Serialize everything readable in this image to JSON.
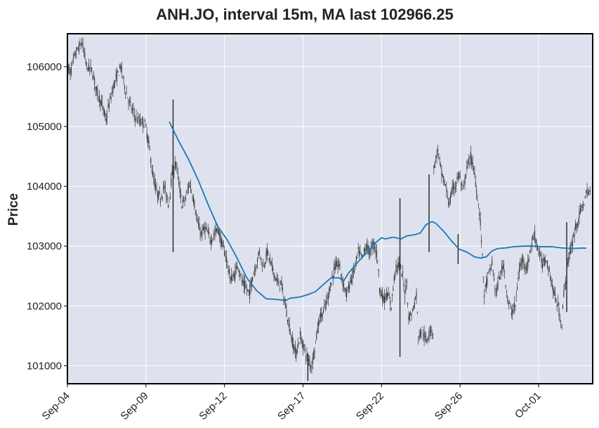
{
  "chart_data": {
    "type": "candlestick",
    "title": "ANH.JO, interval 15m, MA last 102966.25",
    "ylabel": "Price",
    "xlabel": "",
    "ylim": [
      100700,
      106550
    ],
    "yticks": [
      "101000",
      "102000",
      "103000",
      "104000",
      "105000",
      "106000"
    ],
    "xticks": [
      "Sep-04",
      "Sep-09",
      "Sep-12",
      "Sep-17",
      "Sep-22",
      "Sep-26",
      "Oct-01"
    ],
    "xtick_index": [
      0,
      81,
      162,
      243,
      324,
      405,
      486
    ],
    "n_bars": 540,
    "grid": true,
    "colors": {
      "background": "#dde2ee",
      "candle": "#333333",
      "ma": "#1f77b4",
      "grid": "#ffffff"
    },
    "price_points": [
      [
        0,
        106000
      ],
      [
        3,
        105900
      ],
      [
        8,
        106200
      ],
      [
        15,
        106400
      ],
      [
        20,
        106000
      ],
      [
        25,
        105950
      ],
      [
        30,
        105600
      ],
      [
        35,
        105400
      ],
      [
        40,
        105100
      ],
      [
        42,
        105300
      ],
      [
        48,
        105700
      ],
      [
        55,
        106000
      ],
      [
        60,
        105600
      ],
      [
        66,
        105300
      ],
      [
        72,
        105100
      ],
      [
        80,
        105050
      ],
      [
        84,
        104700
      ],
      [
        88,
        104200
      ],
      [
        92,
        103900
      ],
      [
        96,
        103800
      ],
      [
        100,
        104000
      ],
      [
        104,
        103700
      ],
      [
        108,
        104200
      ],
      [
        112,
        104400
      ],
      [
        118,
        103700
      ],
      [
        122,
        103800
      ],
      [
        126,
        104050
      ],
      [
        130,
        103800
      ],
      [
        134,
        103400
      ],
      [
        138,
        103200
      ],
      [
        142,
        103300
      ],
      [
        148,
        103100
      ],
      [
        155,
        103300
      ],
      [
        160,
        103000
      ],
      [
        164,
        102800
      ],
      [
        168,
        102450
      ],
      [
        172,
        102500
      ],
      [
        176,
        102700
      ],
      [
        180,
        102400
      ],
      [
        184,
        102300
      ],
      [
        188,
        102200
      ],
      [
        191,
        102500
      ],
      [
        195,
        102700
      ],
      [
        198,
        102900
      ],
      [
        202,
        102650
      ],
      [
        206,
        102900
      ],
      [
        210,
        102700
      ],
      [
        214,
        102500
      ],
      [
        218,
        102350
      ],
      [
        220,
        102400
      ],
      [
        232,
        101400
      ],
      [
        236,
        101200
      ],
      [
        240,
        101500
      ],
      [
        244,
        101300
      ],
      [
        248,
        101100
      ],
      [
        252,
        101000
      ],
      [
        256,
        101400
      ],
      [
        260,
        101800
      ],
      [
        264,
        101900
      ],
      [
        268,
        102100
      ],
      [
        272,
        102400
      ],
      [
        276,
        102650
      ],
      [
        280,
        102700
      ],
      [
        284,
        102400
      ],
      [
        288,
        102200
      ],
      [
        292,
        102400
      ],
      [
        296,
        102600
      ],
      [
        300,
        102900
      ],
      [
        304,
        102800
      ],
      [
        308,
        103000
      ],
      [
        312,
        102900
      ],
      [
        316,
        103050
      ],
      [
        320,
        102800
      ],
      [
        322,
        102300
      ],
      [
        326,
        102100
      ],
      [
        330,
        102200
      ],
      [
        334,
        102000
      ],
      [
        338,
        102600
      ],
      [
        342,
        102700
      ],
      [
        346,
        102500
      ],
      [
        348,
        102200
      ],
      [
        350,
        102400
      ],
      [
        352,
        101800
      ],
      [
        356,
        101900
      ],
      [
        360,
        102200
      ],
      [
        362,
        101500
      ],
      [
        366,
        101600
      ],
      [
        370,
        101400
      ],
      [
        374,
        101600
      ],
      [
        377,
        101550
      ],
      [
        378,
        104300
      ],
      [
        382,
        104600
      ],
      [
        386,
        104200
      ],
      [
        390,
        104000
      ],
      [
        394,
        103700
      ],
      [
        398,
        104000
      ],
      [
        400,
        104000
      ],
      [
        404,
        104200
      ],
      [
        408,
        103900
      ],
      [
        412,
        104300
      ],
      [
        416,
        104500
      ],
      [
        420,
        104200
      ],
      [
        424,
        103700
      ],
      [
        426,
        103400
      ],
      [
        430,
        102200
      ],
      [
        434,
        102500
      ],
      [
        438,
        102700
      ],
      [
        442,
        102200
      ],
      [
        446,
        102500
      ],
      [
        450,
        102700
      ],
      [
        454,
        102100
      ],
      [
        458,
        101900
      ],
      [
        462,
        102000
      ],
      [
        466,
        102600
      ],
      [
        470,
        102800
      ],
      [
        474,
        102600
      ],
      [
        478,
        103000
      ],
      [
        482,
        103200
      ],
      [
        486,
        102900
      ],
      [
        490,
        102700
      ],
      [
        494,
        102800
      ],
      [
        498,
        102500
      ],
      [
        502,
        102200
      ],
      [
        506,
        102000
      ],
      [
        508,
        101800
      ],
      [
        510,
        101700
      ],
      [
        512,
        102200
      ],
      [
        516,
        102700
      ],
      [
        520,
        103000
      ],
      [
        524,
        103300
      ],
      [
        528,
        103500
      ],
      [
        532,
        103700
      ],
      [
        536,
        103900
      ],
      [
        540,
        103900
      ]
    ],
    "ma_points": [
      [
        105,
        105080
      ],
      [
        115,
        104750
      ],
      [
        125,
        104450
      ],
      [
        135,
        104100
      ],
      [
        145,
        103700
      ],
      [
        155,
        103330
      ],
      [
        165,
        103100
      ],
      [
        175,
        102800
      ],
      [
        185,
        102470
      ],
      [
        195,
        102260
      ],
      [
        205,
        102120
      ],
      [
        215,
        102110
      ],
      [
        225,
        102090
      ],
      [
        230,
        102130
      ],
      [
        240,
        102150
      ],
      [
        248,
        102190
      ],
      [
        256,
        102240
      ],
      [
        264,
        102360
      ],
      [
        272,
        102470
      ],
      [
        280,
        102470
      ],
      [
        285,
        102420
      ],
      [
        290,
        102550
      ],
      [
        300,
        102740
      ],
      [
        310,
        102910
      ],
      [
        318,
        103060
      ],
      [
        324,
        103140
      ],
      [
        328,
        103120
      ],
      [
        336,
        103150
      ],
      [
        344,
        103120
      ],
      [
        350,
        103170
      ],
      [
        358,
        103190
      ],
      [
        364,
        103220
      ],
      [
        370,
        103360
      ],
      [
        376,
        103410
      ],
      [
        380,
        103380
      ],
      [
        388,
        103250
      ],
      [
        396,
        103090
      ],
      [
        404,
        102950
      ],
      [
        412,
        102900
      ],
      [
        420,
        102820
      ],
      [
        426,
        102800
      ],
      [
        432,
        102820
      ],
      [
        438,
        102920
      ],
      [
        444,
        102960
      ],
      [
        452,
        102970
      ],
      [
        460,
        102990
      ],
      [
        470,
        103000
      ],
      [
        480,
        103000
      ],
      [
        490,
        102990
      ],
      [
        500,
        102990
      ],
      [
        510,
        102970
      ],
      [
        520,
        102960
      ],
      [
        530,
        102966.25
      ],
      [
        540,
        102966.25
      ]
    ],
    "spikes": [
      {
        "index": 109,
        "high": 105450,
        "low": 102900
      },
      {
        "index": 248,
        "high": 101200,
        "low": 100750
      },
      {
        "index": 343,
        "high": 103800,
        "low": 101150
      },
      {
        "index": 373,
        "high": 104200,
        "low": 102900
      },
      {
        "index": 403,
        "high": 103200,
        "low": 102700
      },
      {
        "index": 515,
        "high": 103400,
        "low": 101900
      }
    ]
  }
}
